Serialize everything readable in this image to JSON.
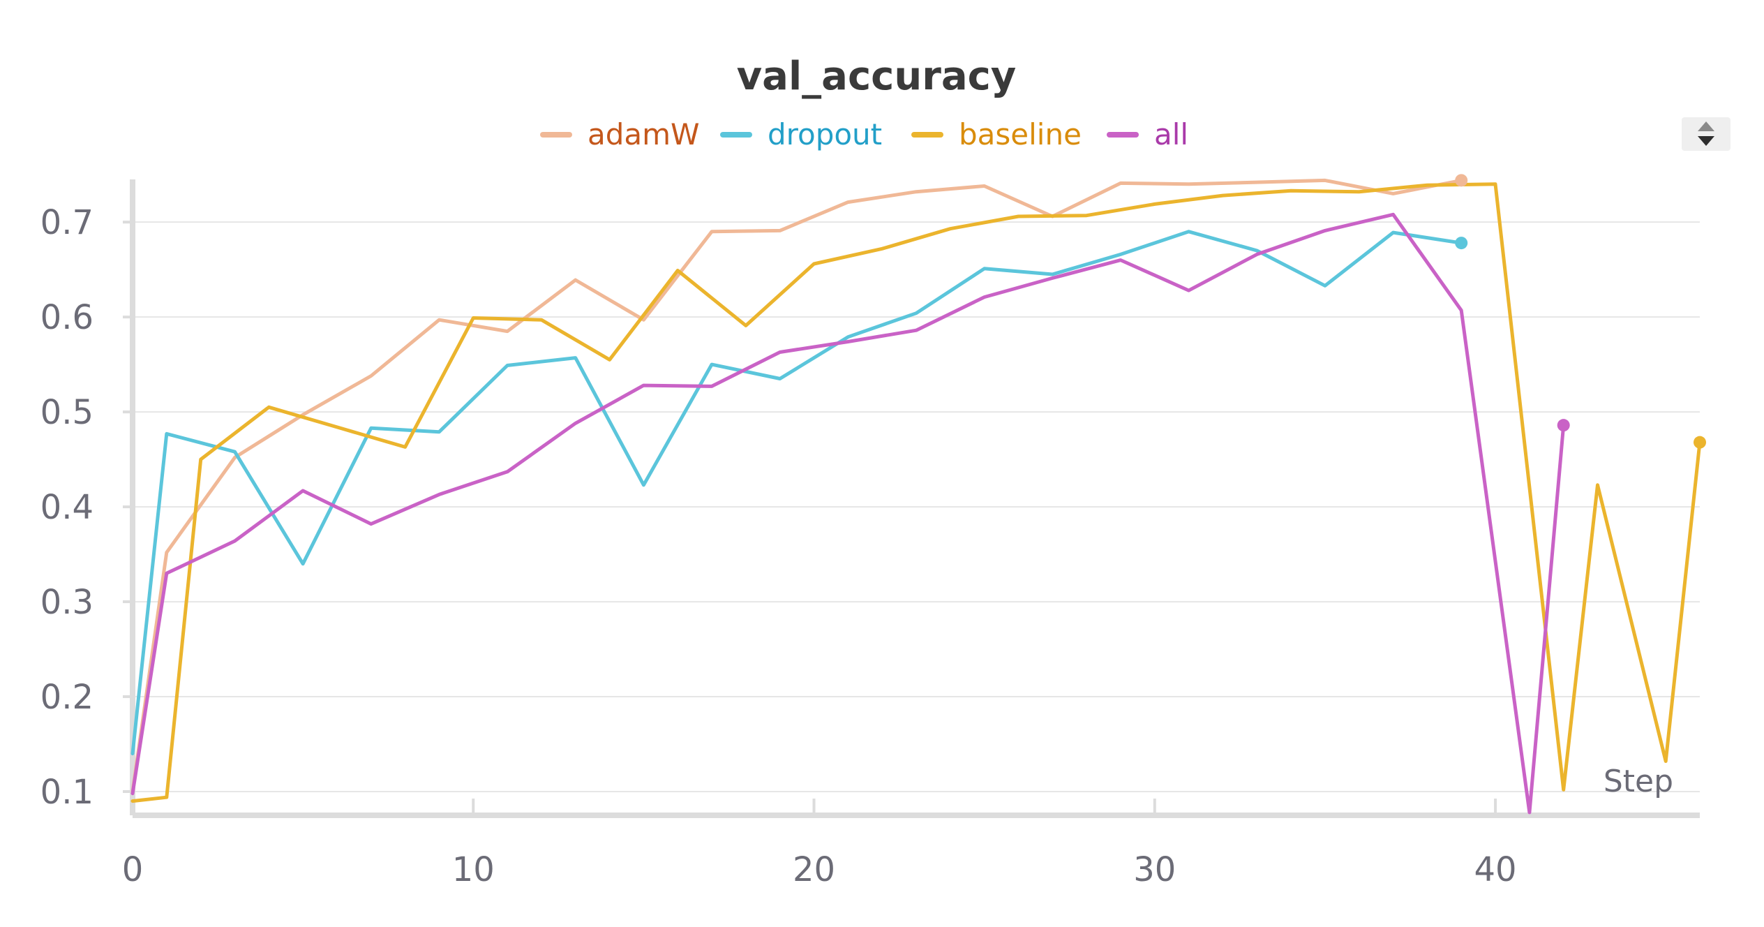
{
  "chart_data": {
    "type": "line",
    "title": "val_accuracy",
    "xlabel": "Step",
    "ylabel": "",
    "xlim": [
      0,
      46
    ],
    "ylim": [
      0.075,
      0.745
    ],
    "x_ticks": [
      0,
      10,
      20,
      30,
      40
    ],
    "y_ticks": [
      0.1,
      0.2,
      0.3,
      0.4,
      0.5,
      0.6,
      0.7
    ],
    "x_tick_labels": [
      "0",
      "10",
      "20",
      "30",
      "40"
    ],
    "y_tick_labels": [
      "0.1",
      "0.2",
      "0.3",
      "0.4",
      "0.5",
      "0.6",
      "0.7"
    ],
    "grid": true,
    "legend_position": "top-center",
    "series": [
      {
        "name": "adamW",
        "color": "#f0b896",
        "label_color": "#c4571b",
        "x": [
          0,
          1,
          3,
          5,
          7,
          9,
          11,
          13,
          15,
          17,
          19,
          21,
          23,
          25,
          27,
          29,
          31,
          33,
          35,
          37,
          39
        ],
        "y": [
          0.1,
          0.352,
          0.452,
          0.497,
          0.538,
          0.597,
          0.585,
          0.639,
          0.597,
          0.69,
          0.691,
          0.721,
          0.732,
          0.738,
          0.706,
          0.741,
          0.74,
          0.742,
          0.744,
          0.73,
          0.744
        ]
      },
      {
        "name": "dropout",
        "color": "#5bc5db",
        "label_color": "#229fc8",
        "x": [
          0,
          1,
          3,
          5,
          7,
          9,
          11,
          13,
          15,
          17,
          19,
          21,
          23,
          25,
          27,
          29,
          31,
          33,
          35,
          37,
          39
        ],
        "y": [
          0.14,
          0.477,
          0.458,
          0.34,
          0.483,
          0.479,
          0.549,
          0.557,
          0.423,
          0.55,
          0.535,
          0.579,
          0.604,
          0.651,
          0.645,
          0.666,
          0.69,
          0.67,
          0.633,
          0.689,
          0.678
        ]
      },
      {
        "name": "baseline",
        "color": "#ebb42d",
        "label_color": "#d98c0b",
        "x": [
          0,
          1,
          2,
          4,
          6,
          8,
          10,
          12,
          14,
          16,
          18,
          20,
          22,
          24,
          26,
          28,
          30,
          32,
          34,
          36,
          38,
          40,
          42,
          43,
          45,
          46
        ],
        "y": [
          0.09,
          0.094,
          0.45,
          0.505,
          0.484,
          0.463,
          0.599,
          0.597,
          0.555,
          0.649,
          0.591,
          0.656,
          0.672,
          0.693,
          0.706,
          0.707,
          0.719,
          0.728,
          0.733,
          0.732,
          0.739,
          0.74,
          0.102,
          0.423,
          0.132,
          0.468
        ]
      },
      {
        "name": "all",
        "color": "#c962c6",
        "label_color": "#a93aa9",
        "x": [
          0,
          1,
          3,
          5,
          7,
          9,
          11,
          13,
          15,
          17,
          19,
          21,
          23,
          25,
          27,
          29,
          31,
          33,
          35,
          37,
          39,
          41,
          42
        ],
        "y": [
          0.098,
          0.33,
          0.364,
          0.417,
          0.382,
          0.413,
          0.437,
          0.488,
          0.528,
          0.527,
          0.563,
          0.574,
          0.586,
          0.621,
          0.641,
          0.66,
          0.628,
          0.666,
          0.691,
          0.708,
          0.607,
          0.078,
          0.486
        ]
      }
    ],
    "end_markers": [
      "adamW",
      "dropout",
      "baseline",
      "all"
    ]
  }
}
